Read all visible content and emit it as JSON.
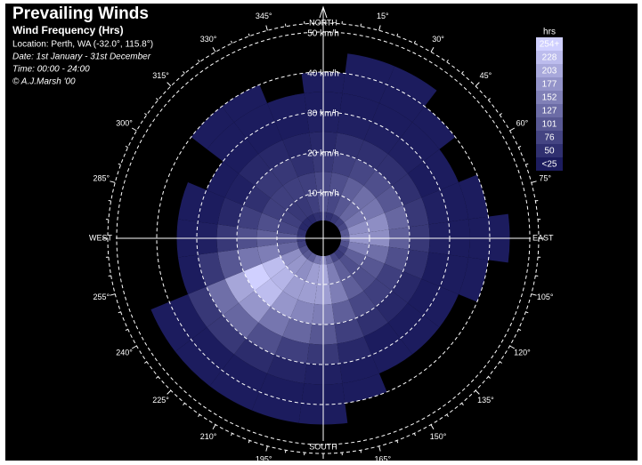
{
  "chart_data": {
    "type": "polar-heatmap",
    "title": "Prevailing Winds",
    "subtitle": "Wind Frequency (Hrs)",
    "annotations": [
      "Location: Perth, WA (-32.0°, 115.8°)",
      "Date: 1st January - 31st December",
      "Time: 00:00 - 24:00",
      "© A.J.Marsh '00"
    ],
    "compass": [
      "NORTH",
      "EAST",
      "SOUTH",
      "WEST"
    ],
    "angle_ticks": [
      {
        "value": 15,
        "label": "15°"
      },
      {
        "value": 30,
        "label": "30°"
      },
      {
        "value": 45,
        "label": "45°"
      },
      {
        "value": 60,
        "label": "60°"
      },
      {
        "value": 75,
        "label": "75°"
      },
      {
        "value": 105,
        "label": "105°"
      },
      {
        "value": 120,
        "label": "120°"
      },
      {
        "value": 135,
        "label": "135°"
      },
      {
        "value": 150,
        "label": "150°"
      },
      {
        "value": 165,
        "label": "165°"
      },
      {
        "value": 195,
        "label": "195°"
      },
      {
        "value": 210,
        "label": "210°"
      },
      {
        "value": 225,
        "label": "225°"
      },
      {
        "value": 240,
        "label": "240°"
      },
      {
        "value": 255,
        "label": "255°"
      },
      {
        "value": 285,
        "label": "285°"
      },
      {
        "value": 300,
        "label": "300°"
      },
      {
        "value": 315,
        "label": "315°"
      },
      {
        "value": 330,
        "label": "330°"
      },
      {
        "value": 345,
        "label": "345°"
      }
    ],
    "rlim": [
      0,
      50
    ],
    "rticks": [
      {
        "value": 10,
        "label": "10 km/h"
      },
      {
        "value": 20,
        "label": "20 km/h"
      },
      {
        "value": 30,
        "label": "30 km/h"
      },
      {
        "value": 40,
        "label": "40 km/h"
      },
      {
        "value": 50,
        "label": "50 km/h"
      }
    ],
    "directions": [
      0,
      15,
      30,
      45,
      60,
      75,
      90,
      105,
      120,
      135,
      150,
      165,
      180,
      195,
      210,
      225,
      240,
      255,
      270,
      285,
      300,
      315,
      330,
      345
    ],
    "speed_bins": [
      0,
      5,
      10,
      15,
      20,
      25,
      30,
      35,
      40,
      45
    ],
    "values": [
      [
        60,
        90,
        80,
        60,
        40,
        30,
        20,
        10,
        0
      ],
      [
        50,
        80,
        90,
        70,
        50,
        30,
        20,
        10,
        5
      ],
      [
        60,
        100,
        110,
        80,
        50,
        30,
        20,
        10,
        5
      ],
      [
        70,
        120,
        130,
        90,
        50,
        30,
        15,
        8,
        0
      ],
      [
        80,
        140,
        140,
        100,
        50,
        25,
        10,
        0,
        0
      ],
      [
        100,
        170,
        170,
        120,
        60,
        30,
        15,
        8,
        0
      ],
      [
        110,
        180,
        170,
        110,
        60,
        30,
        15,
        8,
        5
      ],
      [
        90,
        150,
        130,
        90,
        50,
        25,
        12,
        6,
        0
      ],
      [
        70,
        110,
        100,
        70,
        40,
        20,
        10,
        0,
        0
      ],
      [
        60,
        90,
        90,
        70,
        40,
        20,
        10,
        0,
        0
      ],
      [
        80,
        110,
        110,
        80,
        50,
        25,
        10,
        0,
        0
      ],
      [
        120,
        150,
        150,
        110,
        70,
        40,
        20,
        8,
        0
      ],
      [
        160,
        200,
        190,
        150,
        100,
        60,
        30,
        15,
        5
      ],
      [
        140,
        190,
        190,
        160,
        120,
        70,
        35,
        15,
        5
      ],
      [
        110,
        170,
        190,
        180,
        140,
        90,
        45,
        20,
        8
      ],
      [
        100,
        180,
        220,
        230,
        180,
        120,
        60,
        25,
        10
      ],
      [
        90,
        170,
        230,
        260,
        200,
        130,
        60,
        25,
        10
      ],
      [
        70,
        120,
        150,
        140,
        100,
        60,
        25,
        0,
        0
      ],
      [
        60,
        100,
        110,
        90,
        60,
        30,
        12,
        0,
        0
      ],
      [
        50,
        80,
        90,
        70,
        40,
        20,
        10,
        0,
        0
      ],
      [
        40,
        70,
        70,
        50,
        30,
        15,
        0,
        0,
        0
      ],
      [
        40,
        60,
        70,
        60,
        40,
        25,
        15,
        8,
        0
      ],
      [
        40,
        60,
        70,
        60,
        40,
        25,
        15,
        8,
        0
      ],
      [
        50,
        70,
        70,
        50,
        35,
        20,
        10,
        0,
        0
      ]
    ],
    "color_low": "#1c1c5e",
    "color_high": "#d0d0ff",
    "legend": {
      "title": "hrs",
      "levels": [
        {
          "value": 254,
          "label": "254+"
        },
        228,
        203,
        177,
        152,
        127,
        101,
        76,
        50,
        {
          "value": 25,
          "label": "<25"
        }
      ]
    }
  }
}
